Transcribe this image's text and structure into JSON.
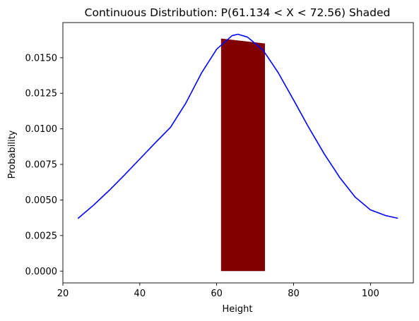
{
  "chart_data": {
    "type": "area",
    "title": "Continuous Distribution: P(61.134 < X < 72.56) Shaded",
    "xlabel": "Height",
    "ylabel": "Probability",
    "xlim": [
      20,
      111.15
    ],
    "ylim": [
      -0.00083,
      0.01747
    ],
    "x_ticks": [
      20,
      40,
      60,
      80,
      100
    ],
    "x_tick_labels": [
      "20",
      "40",
      "60",
      "80",
      "100"
    ],
    "y_ticks": [
      0.0,
      0.0025,
      0.005,
      0.0075,
      0.01,
      0.0125,
      0.015
    ],
    "y_tick_labels": [
      "0.0000",
      "0.0025",
      "0.0050",
      "0.0075",
      "0.0100",
      "0.0125",
      "0.0150"
    ],
    "grid": false,
    "legend": "none",
    "series": [
      {
        "kind": "line",
        "color": "#0000ff",
        "x": [
          24,
          28,
          32,
          36,
          40,
          44,
          48,
          52,
          56,
          60,
          64,
          65.5,
          68,
          72,
          76,
          80,
          84,
          88,
          92,
          96,
          100,
          104,
          107
        ],
        "y": [
          0.00372,
          0.00464,
          0.00566,
          0.00675,
          0.00788,
          0.00901,
          0.01011,
          0.01182,
          0.0139,
          0.0156,
          0.01655,
          0.01665,
          0.01645,
          0.01556,
          0.01395,
          0.01203,
          0.01007,
          0.00823,
          0.00658,
          0.00521,
          0.0043,
          0.0039,
          0.00372
        ]
      },
      {
        "kind": "shaded-interval",
        "color": "#800000",
        "x_start": 61.134,
        "x_end": 72.56,
        "y_bottom": 0.0,
        "y_top_left": 0.01635,
        "y_top_right": 0.016
      }
    ],
    "colors": {
      "line": "#0000ff",
      "fill": "#800000",
      "axes": "#000000",
      "background": "#ffffff"
    }
  }
}
